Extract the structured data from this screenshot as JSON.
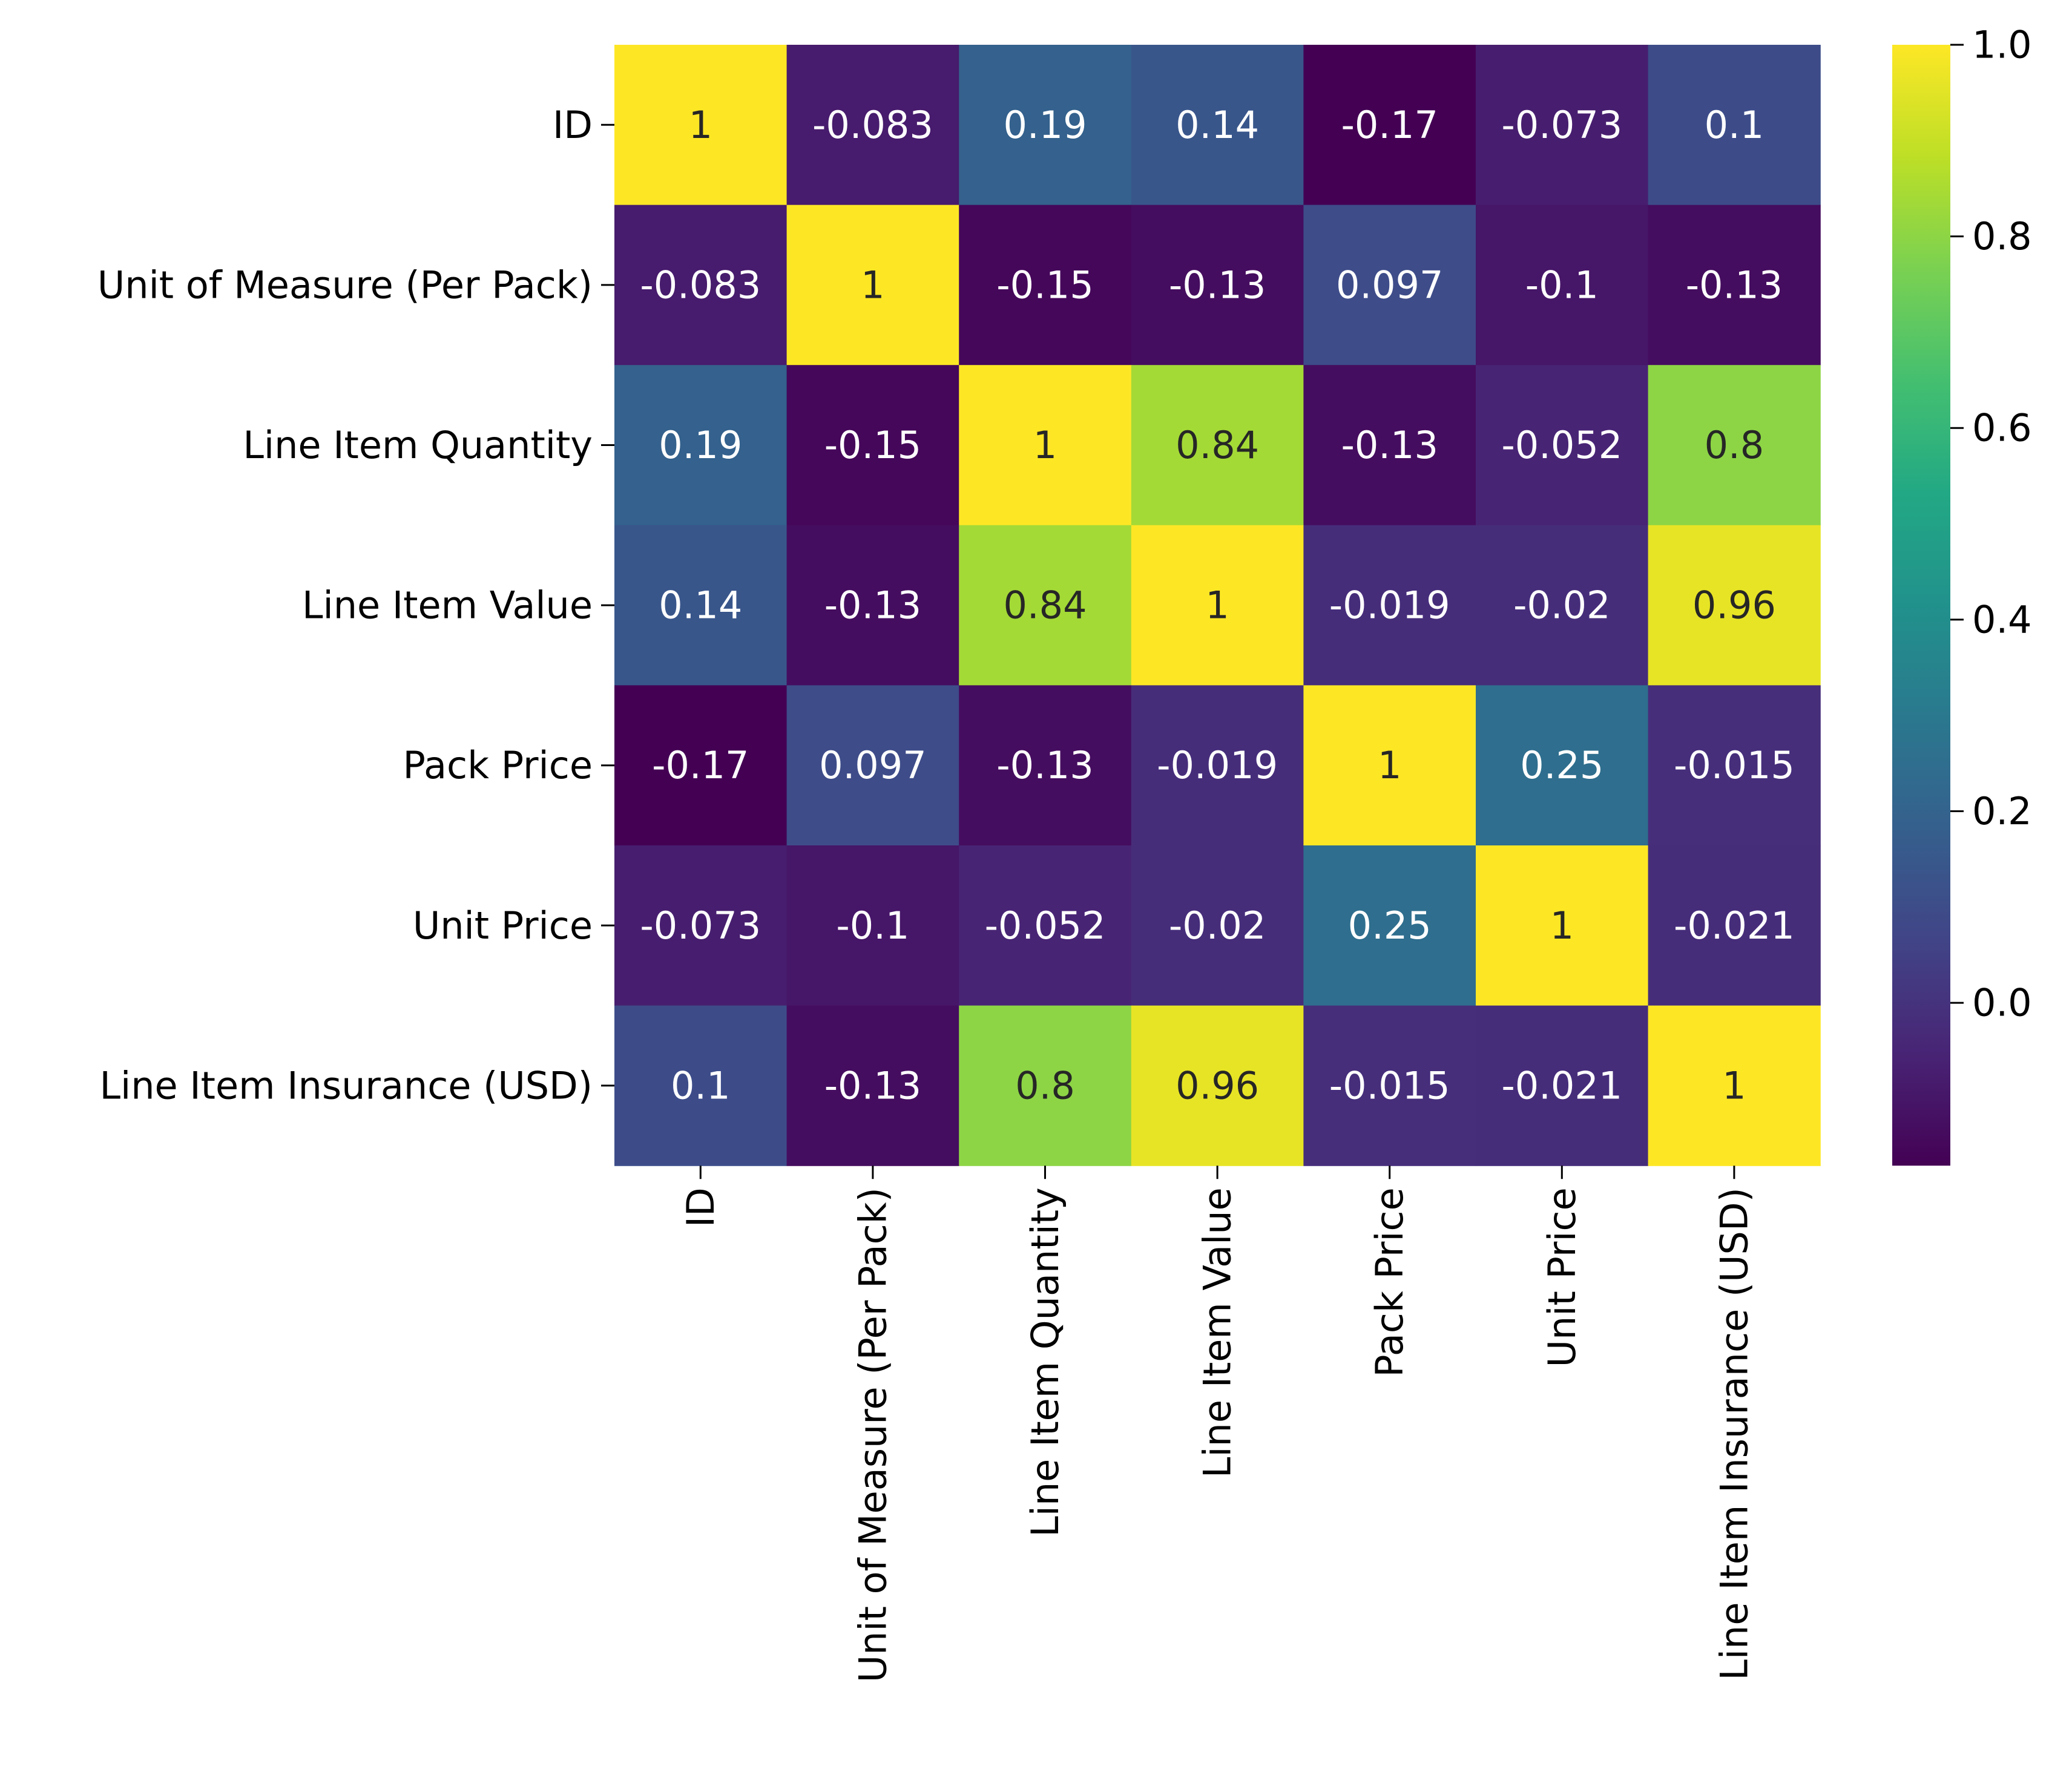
{
  "chart_data": {
    "type": "heatmap",
    "colormap": "viridis",
    "row_labels": [
      "ID",
      "Unit of Measure (Per Pack)",
      "Line Item Quantity",
      "Line Item Value",
      "Pack Price",
      "Unit Price",
      "Line Item Insurance (USD)"
    ],
    "col_labels": [
      "ID",
      "Unit of Measure (Per Pack)",
      "Line Item Quantity",
      "Line Item Value",
      "Pack Price",
      "Unit Price",
      "Line Item Insurance (USD)"
    ],
    "values": [
      [
        1,
        -0.083,
        0.19,
        0.14,
        -0.17,
        -0.073,
        0.1
      ],
      [
        -0.083,
        1,
        -0.15,
        -0.13,
        0.097,
        -0.1,
        -0.13
      ],
      [
        0.19,
        -0.15,
        1,
        0.84,
        -0.13,
        -0.052,
        0.8
      ],
      [
        0.14,
        -0.13,
        0.84,
        1,
        -0.019,
        -0.02,
        0.96
      ],
      [
        -0.17,
        0.097,
        -0.13,
        -0.019,
        1,
        0.25,
        -0.015
      ],
      [
        -0.073,
        -0.1,
        -0.052,
        -0.02,
        0.25,
        1,
        -0.021
      ],
      [
        0.1,
        -0.13,
        0.8,
        0.96,
        -0.015,
        -0.021,
        1
      ]
    ],
    "annotations": [
      [
        "1",
        "-0.083",
        "0.19",
        "0.14",
        "-0.17",
        "-0.073",
        "0.1"
      ],
      [
        "-0.083",
        "1",
        "-0.15",
        "-0.13",
        "0.097",
        "-0.1",
        "-0.13"
      ],
      [
        "0.19",
        "-0.15",
        "1",
        "0.84",
        "-0.13",
        "-0.052",
        "0.8"
      ],
      [
        "0.14",
        "-0.13",
        "0.84",
        "1",
        "-0.019",
        "-0.02",
        "0.96"
      ],
      [
        "-0.17",
        "0.097",
        "-0.13",
        "-0.019",
        "1",
        "0.25",
        "-0.015"
      ],
      [
        "-0.073",
        "-0.1",
        "-0.052",
        "-0.02",
        "0.25",
        "1",
        "-0.021"
      ],
      [
        "0.1",
        "-0.13",
        "0.8",
        "0.96",
        "-0.015",
        "-0.021",
        "1"
      ]
    ],
    "vmin": -0.17,
    "vmax": 1.0,
    "colorbar_ticks": [
      {
        "value": 0.0,
        "label": "0.0"
      },
      {
        "value": 0.2,
        "label": "0.2"
      },
      {
        "value": 0.4,
        "label": "0.4"
      },
      {
        "value": 0.6,
        "label": "0.6"
      },
      {
        "value": 0.8,
        "label": "0.8"
      },
      {
        "value": 1.0,
        "label": "1.0"
      }
    ],
    "annotation_text_dark": "#262626",
    "annotation_text_light": "#ffffff",
    "title": "",
    "xlabel": "",
    "ylabel": ""
  }
}
